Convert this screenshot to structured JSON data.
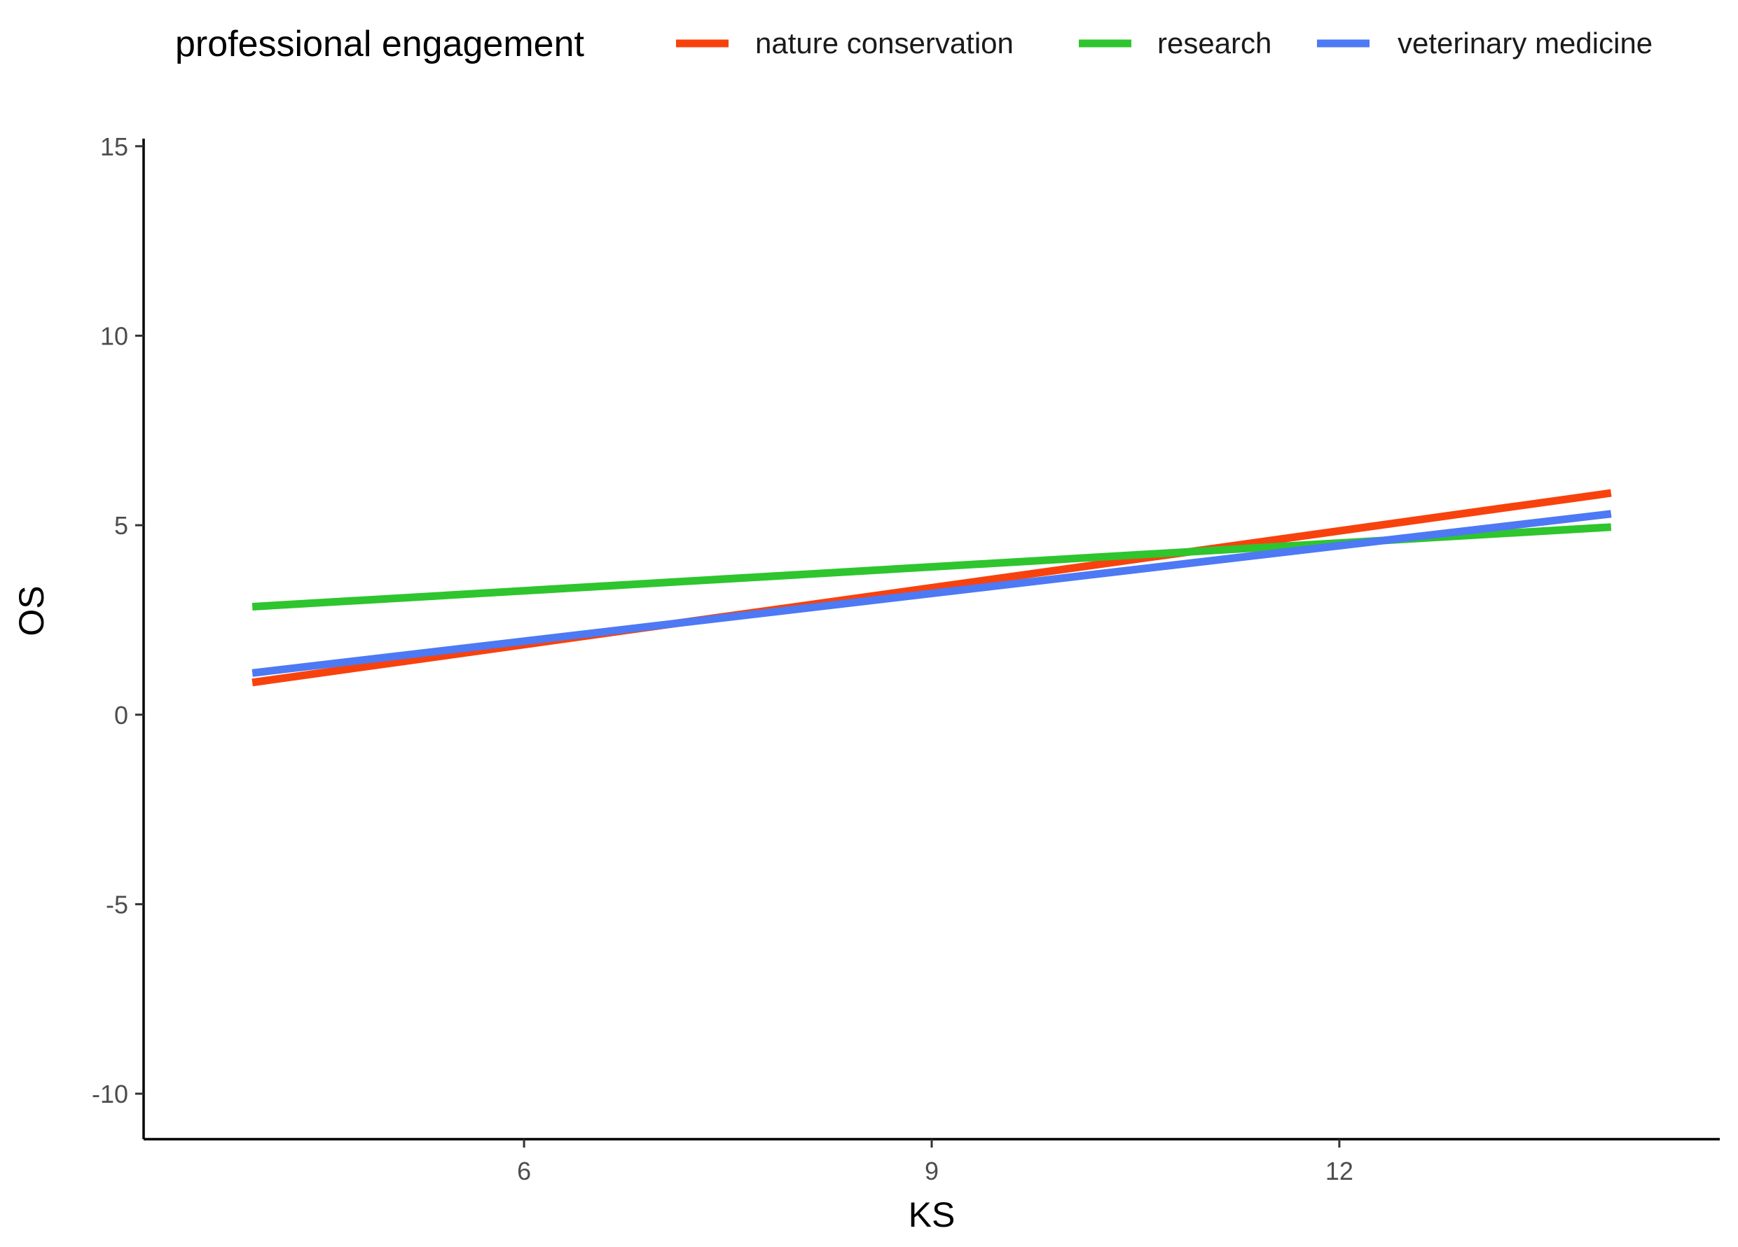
{
  "chart_data": {
    "type": "line",
    "title": "",
    "xlabel": "KS",
    "ylabel": "OS",
    "xlim": [
      3.2,
      14.8
    ],
    "ylim": [
      -11.2,
      15.2
    ],
    "xticks": [
      6,
      9,
      12
    ],
    "yticks": [
      -10,
      -5,
      0,
      5,
      10,
      15
    ],
    "grid": false,
    "legend": {
      "title": "professional engagement",
      "position": "top"
    },
    "series": [
      {
        "name": "nature conservation",
        "color": "#f8420e",
        "x": [
          4,
          14
        ],
        "y": [
          0.85,
          5.85
        ]
      },
      {
        "name": "research",
        "color": "#2ec52e",
        "x": [
          4,
          14
        ],
        "y": [
          2.85,
          4.95
        ]
      },
      {
        "name": "veterinary medicine",
        "color": "#4d79f4",
        "x": [
          4,
          14
        ],
        "y": [
          1.1,
          5.3
        ]
      }
    ]
  }
}
